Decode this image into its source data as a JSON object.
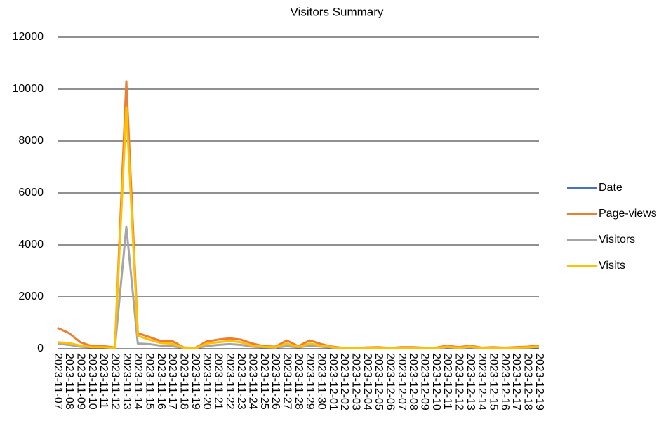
{
  "chart_data": {
    "type": "line",
    "title": "Visitors Summary",
    "categories": [
      "2023-11-07",
      "2023-11-08",
      "2023-11-09",
      "2023-11-10",
      "2023-11-11",
      "2023-11-12",
      "2023-11-13",
      "2023-11-14",
      "2023-11-15",
      "2023-11-16",
      "2023-11-17",
      "2023-11-18",
      "2023-11-19",
      "2023-11-20",
      "2023-11-21",
      "2023-11-22",
      "2023-11-23",
      "2023-11-24",
      "2023-11-25",
      "2023-11-26",
      "2023-11-27",
      "2023-11-28",
      "2023-11-29",
      "2023-11-30",
      "2023-12-01",
      "2023-12-02",
      "2023-12-03",
      "2023-12-04",
      "2023-12-05",
      "2023-12-06",
      "2023-12-07",
      "2023-12-08",
      "2023-12-09",
      "2023-12-10",
      "2023-12-11",
      "2023-12-12",
      "2023-12-13",
      "2023-12-14",
      "2023-12-15",
      "2023-12-16",
      "2023-12-17",
      "2023-12-18",
      "2023-12-19"
    ],
    "series": [
      {
        "name": "Date",
        "color": "#4472c4",
        "values": [
          null,
          null,
          null,
          null,
          null,
          null,
          null,
          null,
          null,
          null,
          null,
          null,
          null,
          null,
          null,
          null,
          null,
          null,
          null,
          null,
          null,
          null,
          null,
          null,
          null,
          null,
          null,
          null,
          null,
          null,
          null,
          null,
          null,
          null,
          null,
          null,
          null,
          null,
          null,
          null,
          null,
          null,
          null
        ]
      },
      {
        "name": "Page-views",
        "color": "#ed7d31",
        "values": [
          800,
          600,
          250,
          100,
          100,
          50,
          10300,
          600,
          450,
          300,
          300,
          50,
          30,
          280,
          350,
          400,
          350,
          200,
          100,
          80,
          320,
          100,
          320,
          180,
          80,
          30,
          30,
          50,
          60,
          30,
          60,
          60,
          40,
          40,
          120,
          60,
          120,
          40,
          60,
          40,
          60,
          80,
          120
        ]
      },
      {
        "name": "Visitors",
        "color": "#a5a5a5",
        "values": [
          200,
          150,
          80,
          50,
          50,
          30,
          4700,
          200,
          180,
          120,
          100,
          30,
          20,
          100,
          150,
          180,
          150,
          80,
          50,
          40,
          100,
          50,
          120,
          80,
          40,
          20,
          20,
          30,
          30,
          20,
          30,
          30,
          20,
          20,
          50,
          30,
          50,
          20,
          30,
          20,
          30,
          40,
          60
        ]
      },
      {
        "name": "Visits",
        "color": "#ffc000",
        "values": [
          250,
          220,
          120,
          60,
          60,
          40,
          9300,
          500,
          350,
          220,
          200,
          40,
          20,
          200,
          250,
          300,
          250,
          120,
          70,
          60,
          200,
          70,
          200,
          120,
          60,
          25,
          25,
          40,
          40,
          25,
          40,
          40,
          30,
          30,
          80,
          40,
          80,
          30,
          40,
          30,
          40,
          60,
          80
        ]
      }
    ],
    "ylim": [
      0,
      12000
    ],
    "yticks": [
      0,
      2000,
      4000,
      6000,
      8000,
      10000,
      12000
    ],
    "grid": true,
    "legend": "right"
  }
}
